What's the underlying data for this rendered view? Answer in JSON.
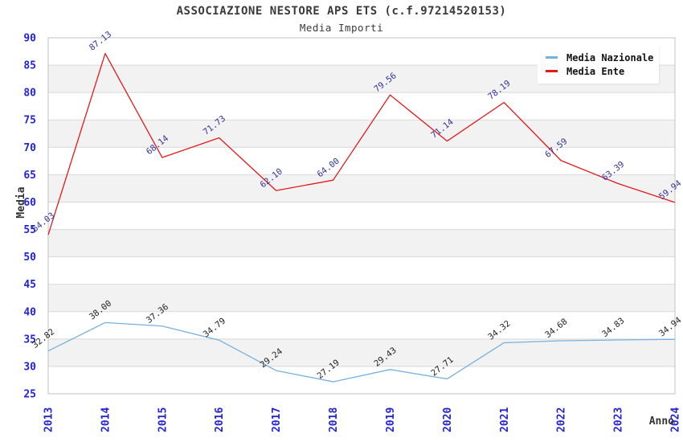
{
  "header": {
    "title": "ASSOCIAZIONE NESTORE APS ETS (c.f.97214520153)",
    "subtitle": "Media Importi"
  },
  "chart_data": {
    "type": "line",
    "title": "ASSOCIAZIONE NESTORE APS ETS (c.f.97214520153)",
    "subtitle": "Media Importi",
    "xlabel": "Anno",
    "ylabel": "Media",
    "x": [
      2013,
      2014,
      2015,
      2016,
      2017,
      2018,
      2019,
      2020,
      2021,
      2022,
      2023,
      2024
    ],
    "ylim": [
      25,
      90
    ],
    "ytick_step": 5,
    "grid": true,
    "legend_position": "top-right",
    "band_fill": "#f2f2f2",
    "grid_color": "#d9d9d9",
    "border_color": "#c2c2c8",
    "tick_color": "#2323cf",
    "axis_title_color": "#333333",
    "series": [
      {
        "name": "Media Nazionale",
        "color": "#74b2e2",
        "label_color": "#222222",
        "values": [
          32.82,
          38.0,
          37.36,
          34.79,
          29.24,
          27.19,
          29.43,
          27.71,
          34.32,
          34.68,
          34.83,
          34.94
        ]
      },
      {
        "name": "Media Ente",
        "color": "#e31a1c",
        "label_color": "#333399",
        "values": [
          54.03,
          87.13,
          68.14,
          71.73,
          62.1,
          64.0,
          79.56,
          71.14,
          78.19,
          67.59,
          63.39,
          59.94
        ]
      }
    ]
  }
}
